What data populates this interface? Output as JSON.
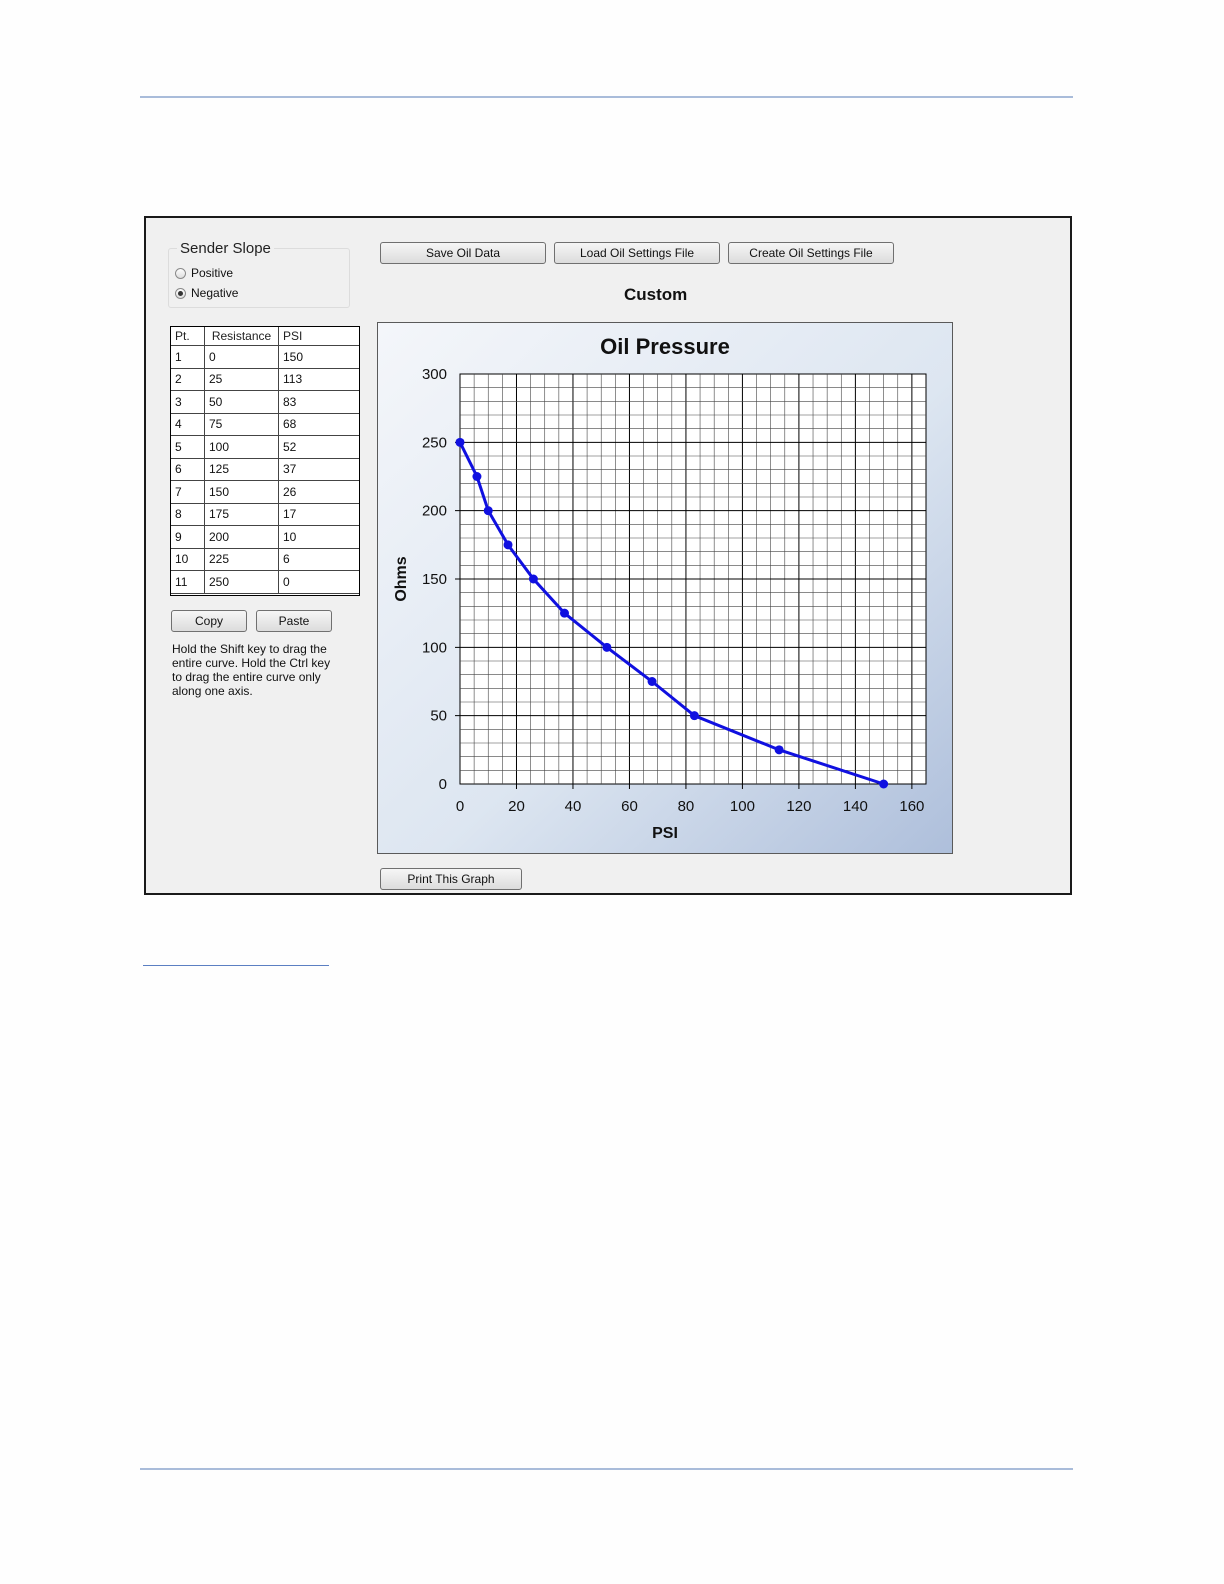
{
  "window": {
    "group": {
      "title": "Sender Slope",
      "options": [
        {
          "label": "Positive",
          "selected": false
        },
        {
          "label": "Negative",
          "selected": true
        }
      ]
    },
    "toolbar": {
      "save_label": "Save Oil Data",
      "load_label": "Load Oil Settings File",
      "create_label": "Create Oil Settings File"
    },
    "curve_name": "Custom",
    "table": {
      "headers": [
        "Pt.",
        "Resistance",
        "PSI"
      ],
      "rows": [
        [
          "1",
          "0",
          "150"
        ],
        [
          "2",
          "25",
          "113"
        ],
        [
          "3",
          "50",
          "83"
        ],
        [
          "4",
          "75",
          "68"
        ],
        [
          "5",
          "100",
          "52"
        ],
        [
          "6",
          "125",
          "37"
        ],
        [
          "7",
          "150",
          "26"
        ],
        [
          "8",
          "175",
          "17"
        ],
        [
          "9",
          "200",
          "10"
        ],
        [
          "10",
          "225",
          "6"
        ],
        [
          "11",
          "250",
          "0"
        ]
      ]
    },
    "copy_label": "Copy",
    "paste_label": "Paste",
    "hint": "Hold the Shift key to drag the entire curve.  Hold the Ctrl key to drag the entire curve only along one axis.",
    "print_label": "Print This Graph"
  },
  "chart_data": {
    "type": "line",
    "title": "Oil Pressure",
    "xlabel": "PSI",
    "ylabel": "Ohms",
    "xlim": [
      0,
      165
    ],
    "ylim": [
      0,
      300
    ],
    "x_ticks": [
      0,
      20,
      40,
      60,
      80,
      100,
      120,
      140,
      160
    ],
    "y_ticks": [
      0,
      50,
      100,
      150,
      200,
      250,
      300
    ],
    "grid": true,
    "series": [
      {
        "color": "#1010e0",
        "points": [
          [
            150,
            0
          ],
          [
            113,
            25
          ],
          [
            83,
            50
          ],
          [
            68,
            75
          ],
          [
            52,
            100
          ],
          [
            37,
            125
          ],
          [
            26,
            150
          ],
          [
            17,
            175
          ],
          [
            10,
            200
          ],
          [
            6,
            225
          ],
          [
            0,
            250
          ]
        ]
      }
    ]
  }
}
